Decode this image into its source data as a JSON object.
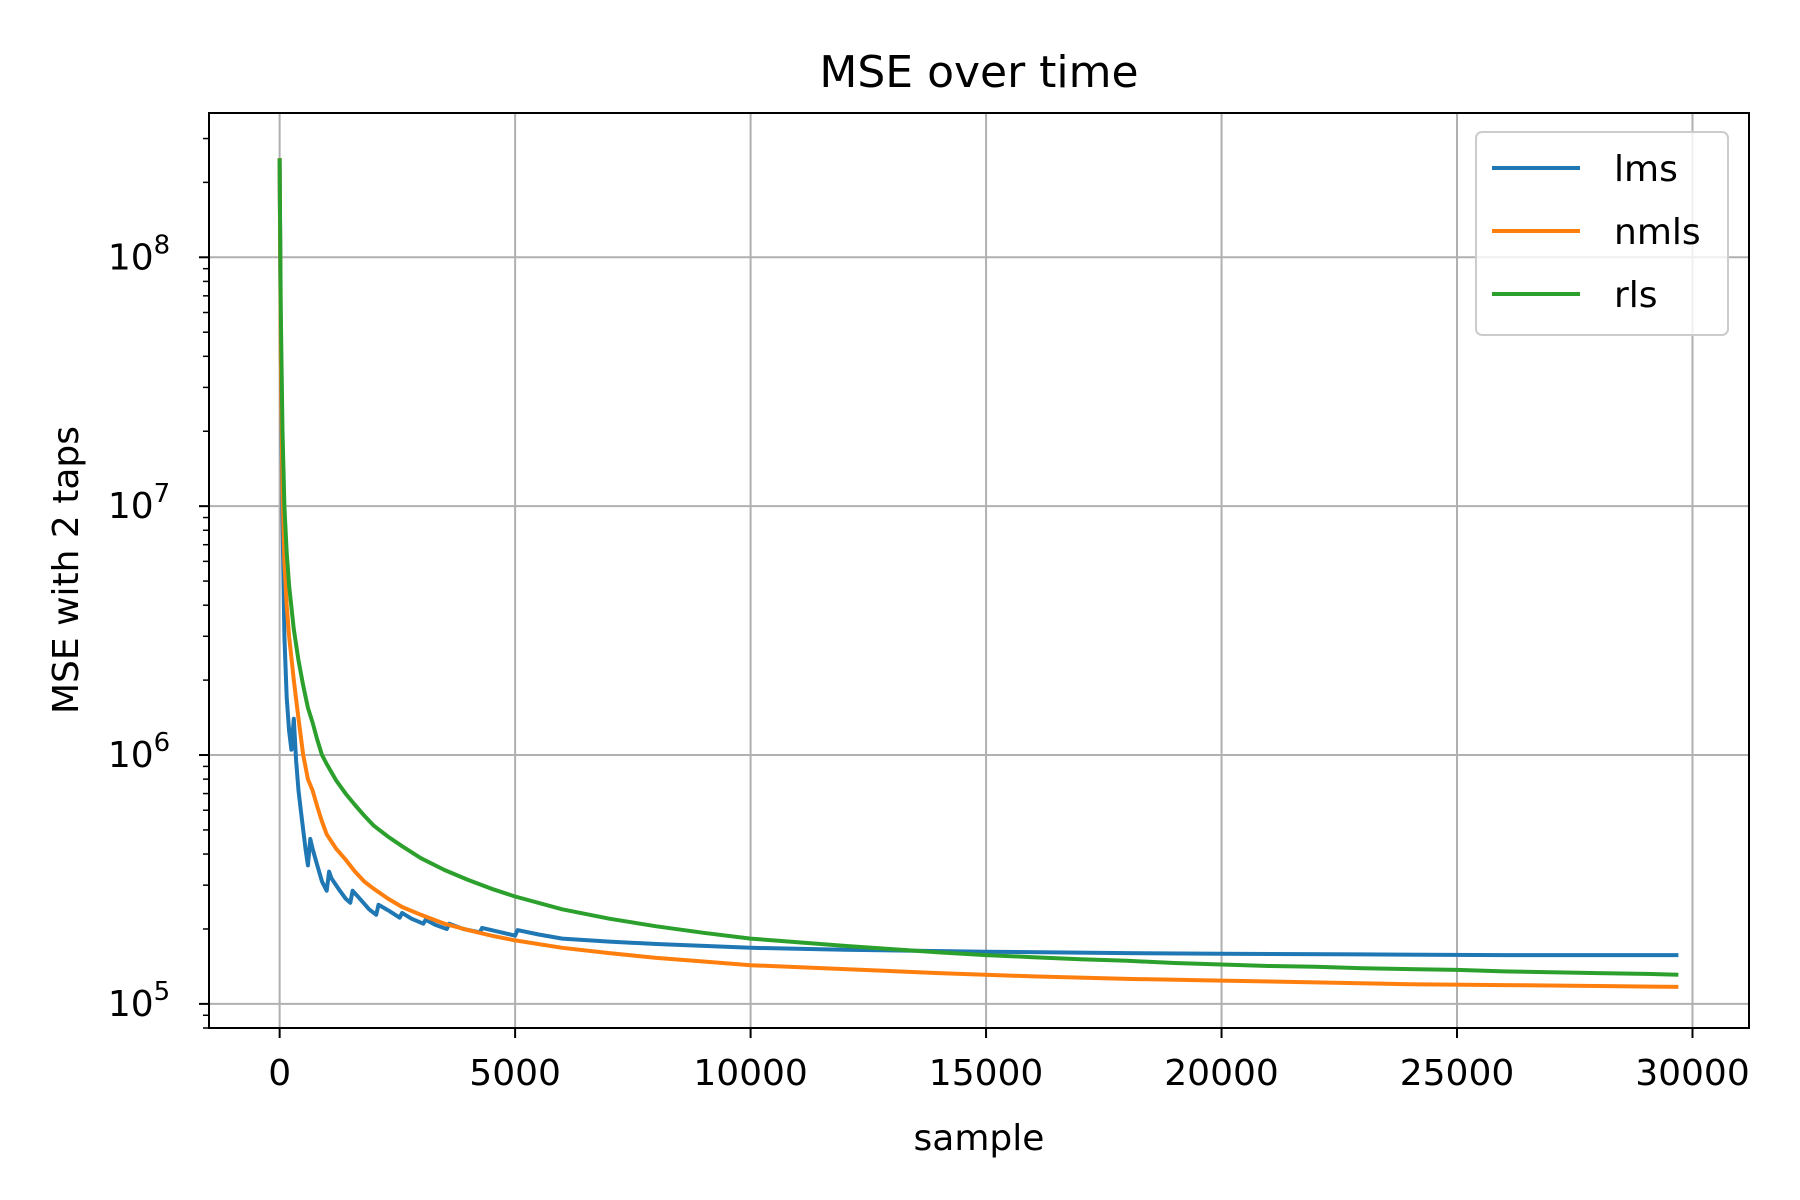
{
  "chart_data": {
    "type": "line",
    "title": "MSE over time",
    "xlabel": "sample",
    "ylabel": "MSE with 2 taps",
    "xlim": [
      -1500,
      31200
    ],
    "ylim": [
      80000,
      380000000
    ],
    "yscale": "log",
    "grid": true,
    "legend_position": "top-right",
    "x_ticks": [
      {
        "value": 0,
        "label": "0"
      },
      {
        "value": 5000,
        "label": "5000"
      },
      {
        "value": 10000,
        "label": "10000"
      },
      {
        "value": 15000,
        "label": "15000"
      },
      {
        "value": 20000,
        "label": "20000"
      },
      {
        "value": 25000,
        "label": "25000"
      },
      {
        "value": 30000,
        "label": "30000"
      }
    ],
    "y_ticks": [
      {
        "value": 100000,
        "base": "10",
        "exp": "5"
      },
      {
        "value": 1000000,
        "base": "10",
        "exp": "6"
      },
      {
        "value": 10000000,
        "base": "10",
        "exp": "7"
      },
      {
        "value": 100000000,
        "base": "10",
        "exp": "8"
      }
    ],
    "series": [
      {
        "name": "lms",
        "color": "#1f77b4",
        "points": [
          [
            0,
            250000000
          ],
          [
            30,
            30000000
          ],
          [
            60,
            9000000
          ],
          [
            100,
            3000000
          ],
          [
            150,
            1700000
          ],
          [
            200,
            1250000
          ],
          [
            250,
            1050000
          ],
          [
            300,
            1400000
          ],
          [
            350,
            950000
          ],
          [
            400,
            720000
          ],
          [
            450,
            600000
          ],
          [
            500,
            500000
          ],
          [
            550,
            420000
          ],
          [
            600,
            360000
          ],
          [
            650,
            460000
          ],
          [
            700,
            420000
          ],
          [
            800,
            360000
          ],
          [
            900,
            310000
          ],
          [
            1000,
            285000
          ],
          [
            1050,
            340000
          ],
          [
            1100,
            320000
          ],
          [
            1250,
            290000
          ],
          [
            1400,
            265000
          ],
          [
            1500,
            255000
          ],
          [
            1550,
            285000
          ],
          [
            1700,
            265000
          ],
          [
            1900,
            240000
          ],
          [
            2050,
            228000
          ],
          [
            2100,
            250000
          ],
          [
            2300,
            238000
          ],
          [
            2550,
            222000
          ],
          [
            2600,
            232000
          ],
          [
            2800,
            220000
          ],
          [
            3050,
            210000
          ],
          [
            3100,
            218000
          ],
          [
            3300,
            208000
          ],
          [
            3550,
            200000
          ],
          [
            3600,
            210000
          ],
          [
            3900,
            200000
          ],
          [
            4250,
            194000
          ],
          [
            4300,
            202000
          ],
          [
            4700,
            194000
          ],
          [
            5000,
            188000
          ],
          [
            5050,
            198000
          ],
          [
            5500,
            190000
          ],
          [
            6000,
            183000
          ],
          [
            7000,
            178000
          ],
          [
            8000,
            174000
          ],
          [
            9000,
            171000
          ],
          [
            10000,
            168000
          ],
          [
            12000,
            165000
          ],
          [
            15000,
            162000
          ],
          [
            18000,
            160000
          ],
          [
            20000,
            159000
          ],
          [
            23000,
            158000
          ],
          [
            26000,
            157000
          ],
          [
            29700,
            157000
          ]
        ]
      },
      {
        "name": "nmls",
        "color": "#ff7f0e",
        "points": [
          [
            0,
            250000000
          ],
          [
            25,
            40000000
          ],
          [
            60,
            12000000
          ],
          [
            100,
            6000000
          ],
          [
            150,
            4000000
          ],
          [
            200,
            3000000
          ],
          [
            300,
            2000000
          ],
          [
            400,
            1400000
          ],
          [
            500,
            1000000
          ],
          [
            600,
            800000
          ],
          [
            700,
            720000
          ],
          [
            800,
            620000
          ],
          [
            900,
            540000
          ],
          [
            1000,
            480000
          ],
          [
            1200,
            420000
          ],
          [
            1400,
            380000
          ],
          [
            1600,
            340000
          ],
          [
            1800,
            310000
          ],
          [
            2000,
            290000
          ],
          [
            2300,
            265000
          ],
          [
            2600,
            245000
          ],
          [
            3000,
            228000
          ],
          [
            3500,
            210000
          ],
          [
            4000,
            198000
          ],
          [
            4500,
            188000
          ],
          [
            5000,
            180000
          ],
          [
            6000,
            168000
          ],
          [
            7000,
            160000
          ],
          [
            8000,
            153000
          ],
          [
            9000,
            148000
          ],
          [
            10000,
            143000
          ],
          [
            12000,
            138000
          ],
          [
            14000,
            133000
          ],
          [
            16000,
            129000
          ],
          [
            18000,
            126000
          ],
          [
            20000,
            124000
          ],
          [
            22000,
            122000
          ],
          [
            24000,
            120000
          ],
          [
            26000,
            119000
          ],
          [
            28000,
            118000
          ],
          [
            29700,
            117000
          ]
        ]
      },
      {
        "name": "rls",
        "color": "#2ca02c",
        "points": [
          [
            0,
            250000000
          ],
          [
            25,
            60000000
          ],
          [
            60,
            20000000
          ],
          [
            100,
            10000000
          ],
          [
            150,
            6500000
          ],
          [
            200,
            4800000
          ],
          [
            300,
            3200000
          ],
          [
            400,
            2400000
          ],
          [
            500,
            1900000
          ],
          [
            600,
            1550000
          ],
          [
            700,
            1350000
          ],
          [
            800,
            1150000
          ],
          [
            900,
            1000000
          ],
          [
            1000,
            920000
          ],
          [
            1200,
            790000
          ],
          [
            1400,
            700000
          ],
          [
            1600,
            630000
          ],
          [
            1800,
            570000
          ],
          [
            2000,
            520000
          ],
          [
            2300,
            470000
          ],
          [
            2600,
            430000
          ],
          [
            3000,
            385000
          ],
          [
            3500,
            345000
          ],
          [
            4000,
            315000
          ],
          [
            4500,
            290000
          ],
          [
            5000,
            270000
          ],
          [
            6000,
            240000
          ],
          [
            7000,
            220000
          ],
          [
            8000,
            205000
          ],
          [
            9000,
            193000
          ],
          [
            10000,
            183000
          ],
          [
            11000,
            177000
          ],
          [
            12000,
            171000
          ],
          [
            13000,
            166000
          ],
          [
            14000,
            161000
          ],
          [
            15000,
            157000
          ],
          [
            16000,
            154000
          ],
          [
            17000,
            151000
          ],
          [
            18000,
            149000
          ],
          [
            19000,
            146000
          ],
          [
            20000,
            144000
          ],
          [
            21000,
            142000
          ],
          [
            22000,
            141000
          ],
          [
            23000,
            139000
          ],
          [
            24000,
            138000
          ],
          [
            25000,
            137000
          ],
          [
            26000,
            135000
          ],
          [
            27000,
            134000
          ],
          [
            28000,
            133000
          ],
          [
            29000,
            132000
          ],
          [
            29700,
            131000
          ]
        ]
      }
    ]
  }
}
